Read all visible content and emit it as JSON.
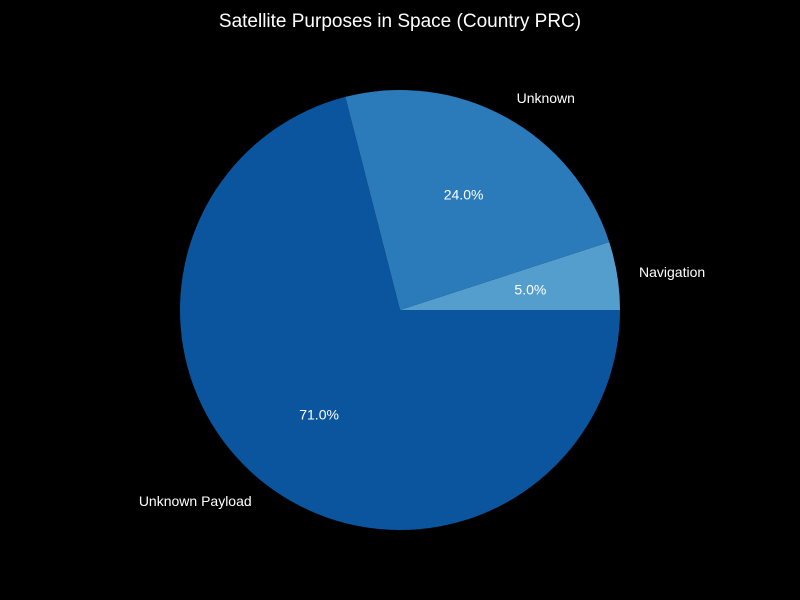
{
  "chart_data": {
    "type": "pie",
    "title": "Satellite Purposes in Space (Country PRC)",
    "categories": [
      "Navigation",
      "Unknown",
      "Unknown Payload"
    ],
    "values": [
      5.0,
      24.0,
      71.0
    ],
    "value_labels": [
      "5.0%",
      "24.0%",
      "71.0%"
    ],
    "colors": [
      "#539ecd",
      "#2b7bba",
      "#0b559f"
    ],
    "start_angle_deg": 0,
    "direction": "counterclockwise",
    "background": "#000000",
    "text_color": "#ffffff",
    "legend": "none"
  }
}
